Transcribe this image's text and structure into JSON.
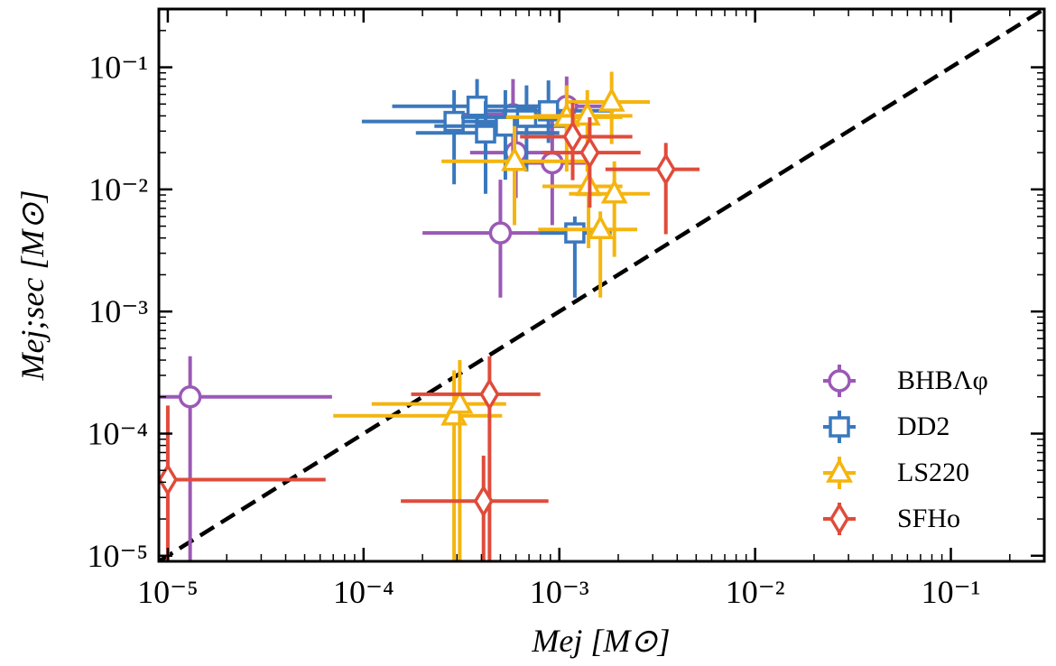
{
  "chart_data": {
    "type": "scatter",
    "x_label": "Mej [M⊙]",
    "y_label": "Mej;sec [M⊙]",
    "x_scale": "log",
    "y_scale": "log",
    "xlim": [
      9e-06,
      0.3
    ],
    "ylim": [
      9e-06,
      0.3
    ],
    "xticks": [
      {
        "value": 1e-05,
        "label": "10⁻⁵"
      },
      {
        "value": 0.0001,
        "label": "10⁻⁴"
      },
      {
        "value": 0.001,
        "label": "10⁻³"
      },
      {
        "value": 0.01,
        "label": "10⁻²"
      },
      {
        "value": 0.1,
        "label": "10⁻¹"
      }
    ],
    "yticks": [
      {
        "value": 1e-05,
        "label": "10⁻⁵"
      },
      {
        "value": 0.0001,
        "label": "10⁻⁴"
      },
      {
        "value": 0.001,
        "label": "10⁻³"
      },
      {
        "value": 0.01,
        "label": "10⁻²"
      },
      {
        "value": 0.1,
        "label": "10⁻¹"
      }
    ],
    "legend": "lower right",
    "reference_line": "y=x",
    "series": [
      {
        "name": "BHBΛφ",
        "color": "#9b59b6",
        "marker": "circle",
        "x": [
          1.3e-05,
          0.0005,
          0.00092,
          0.0006,
          0.00058,
          0.00109
        ],
        "y": [
          0.0002,
          0.0044,
          0.0165,
          0.02,
          0.041,
          0.048
        ],
        "x_lower": [
          5e-06,
          0.0002,
          0.00053,
          0.00035,
          0.00032,
          0.00066
        ],
        "x_upper": [
          6.9e-05,
          0.001,
          0.0014,
          0.001,
          0.0011,
          0.0019
        ],
        "y_lower": [
          5e-06,
          0.0013,
          0.0051,
          0.0085,
          0.019,
          0.028
        ],
        "y_upper": [
          0.00043,
          0.012,
          0.043,
          0.046,
          0.08,
          0.084
        ]
      },
      {
        "name": "DD2",
        "color": "#3a78bd",
        "marker": "square",
        "x": [
          0.00038,
          0.00029,
          0.00042,
          0.00053,
          0.00068,
          0.00088,
          0.0012
        ],
        "y": [
          0.048,
          0.036,
          0.029,
          0.033,
          0.039,
          0.044,
          0.0044
        ],
        "x_lower": [
          0.00014,
          9.8e-05,
          0.000185,
          0.00023,
          0.000315,
          0.00043,
          0.00079
        ],
        "x_upper": [
          0.00091,
          0.00074,
          0.001,
          0.0011,
          0.0014,
          0.0019,
          0.00185
        ],
        "y_lower": [
          0.024,
          0.011,
          0.0092,
          0.012,
          0.014,
          0.024,
          0.0013
        ],
        "y_upper": [
          0.08,
          0.065,
          0.053,
          0.065,
          0.071,
          0.078,
          0.006
        ]
      },
      {
        "name": "LS220",
        "color": "#f5b50f",
        "marker": "triangle",
        "x": [
          0.00029,
          0.00031,
          0.00059,
          0.00109,
          0.00139,
          0.00185,
          0.00141,
          0.00191,
          0.00162
        ],
        "y": [
          0.00014,
          0.000175,
          0.017,
          0.039,
          0.04,
          0.052,
          0.0106,
          0.0092,
          0.0047
        ],
        "x_lower": [
          7e-05,
          0.00011,
          0.00025,
          0.000535,
          0.00074,
          0.00107,
          0.00082,
          0.00112,
          0.00078
        ],
        "x_upper": [
          0.00051,
          0.000535,
          0.00139,
          0.0021,
          0.00236,
          0.0029,
          0.0021,
          0.0029,
          0.0025
        ],
        "y_lower": [
          5e-06,
          5e-06,
          0.0051,
          0.014,
          0.014,
          0.0235,
          0.0033,
          0.0028,
          0.0013
        ],
        "y_upper": [
          0.00033,
          0.0004,
          0.033,
          0.071,
          0.065,
          0.092,
          0.022,
          0.017,
          0.0066
        ]
      },
      {
        "name": "SFHo",
        "color": "#e04b3a",
        "marker": "diamond",
        "x": [
          1e-05,
          0.00044,
          0.00041,
          0.00117,
          0.00143,
          0.0035
        ],
        "y": [
          4.2e-05,
          0.00021,
          2.8e-05,
          0.027,
          0.02,
          0.0146
        ],
        "x_lower": [
          5e-06,
          0.000175,
          0.000155,
          0.00063,
          0.00082,
          0.00172
        ],
        "x_upper": [
          6.4e-05,
          0.0008,
          0.00088,
          0.00236,
          0.0026,
          0.0052
        ],
        "y_lower": [
          5e-06,
          5e-06,
          5e-06,
          0.0119,
          0.0071,
          0.0043
        ],
        "y_upper": [
          0.00017,
          0.00043,
          6.6e-05,
          0.051,
          0.039,
          0.024
        ]
      }
    ]
  }
}
